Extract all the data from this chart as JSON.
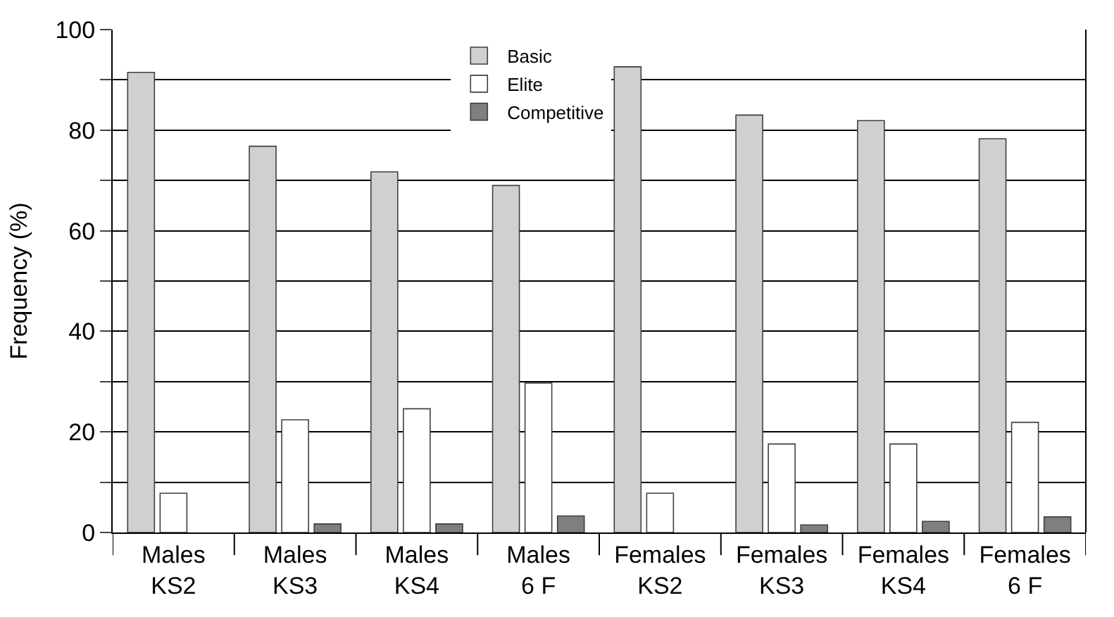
{
  "chart_data": {
    "type": "bar",
    "ylabel": "Frequency (%)",
    "categories": [
      "Males\nKS2",
      "Males\nKS3",
      "Males\nKS4",
      "Males\n6 F",
      "Females\nKS2",
      "Females\nKS3",
      "Females\nKS4",
      "Females\n6 F"
    ],
    "series": [
      {
        "name": "Basic",
        "color": "#d0d0d0",
        "values": [
          91.5,
          76.8,
          71.7,
          69.0,
          92.6,
          83.0,
          81.9,
          78.3
        ]
      },
      {
        "name": "Elite",
        "color": "#ffffff",
        "values": [
          7.8,
          22.4,
          24.6,
          29.7,
          7.8,
          17.6,
          17.6,
          21.9
        ]
      },
      {
        "name": "Competitive",
        "color": "#7f7f7f",
        "values": [
          null,
          1.7,
          1.7,
          3.3,
          null,
          1.5,
          2.2,
          3.1
        ]
      }
    ],
    "ylim": [
      0,
      100
    ],
    "yticks": [
      0,
      {
        "value": 10,
        "label": null
      },
      20,
      {
        "value": 30,
        "label": null
      },
      40,
      {
        "value": 50,
        "label": null
      },
      60,
      {
        "value": 70,
        "label": null
      },
      80,
      {
        "value": 90,
        "label": null
      },
      100
    ],
    "grid": "y",
    "legend": "top center"
  }
}
